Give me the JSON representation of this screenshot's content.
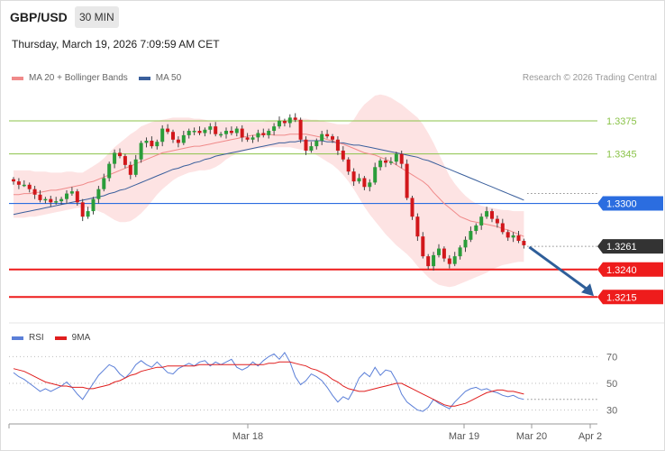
{
  "header": {
    "symbol": "GBP/USD",
    "timeframe": "30 MIN",
    "datetime": "Thursday, March 19, 2026 7:09:59 AM CET"
  },
  "legend": {
    "ma20_label": "MA 20 + Bollinger Bands",
    "ma50_label": "MA 50",
    "credit": "Research © 2026 Trading Central"
  },
  "rsi_legend": {
    "rsi_label": "RSI",
    "ma_label": "9MA"
  },
  "colors": {
    "candle_up": "#2a9d3a",
    "candle_down": "#d2171b",
    "ma20": "#f08a8a",
    "bollinger_fill": "#fde3e3",
    "ma50": "#3a5f9c",
    "resistance": "#8bc34a",
    "pivot": "#2b6de0",
    "support": "#ee1c1c",
    "current": "#333333",
    "arrow": "#2e5e99",
    "rsi": "#5b7fd8",
    "rsi_ma": "#e01e1e"
  },
  "chart_data": [
    {
      "type": "candlestick",
      "title": "",
      "ylim": [
        3198,
        3407
      ],
      "x_labels": [
        "Mar 18",
        "Mar 19",
        "Mar 20",
        "Apr 2"
      ],
      "levels": [
        {
          "value": 1.3375,
          "label": "1.3375",
          "kind": "resistance"
        },
        {
          "value": 1.3345,
          "label": "1.3345",
          "kind": "resistance"
        },
        {
          "value": 1.33,
          "label": "1.3300",
          "kind": "pivot"
        },
        {
          "value": 1.3261,
          "label": "1.3261",
          "kind": "current"
        },
        {
          "value": 1.324,
          "label": "1.3240",
          "kind": "support"
        },
        {
          "value": 1.3215,
          "label": "1.3215",
          "kind": "support"
        }
      ],
      "closes": [
        3320,
        3317,
        3317,
        3313,
        3308,
        3303,
        3304,
        3301,
        3302,
        3304,
        3309,
        3311,
        3301,
        3288,
        3293,
        3304,
        3313,
        3323,
        3336,
        3346,
        3343,
        3335,
        3326,
        3340,
        3355,
        3357,
        3352,
        3356,
        3368,
        3365,
        3358,
        3355,
        3362,
        3366,
        3366,
        3364,
        3367,
        3370,
        3363,
        3363,
        3366,
        3364,
        3368,
        3360,
        3358,
        3360,
        3364,
        3362,
        3366,
        3370,
        3375,
        3373,
        3378,
        3376,
        3358,
        3348,
        3352,
        3357,
        3363,
        3361,
        3358,
        3348,
        3340,
        3329,
        3320,
        3323,
        3315,
        3319,
        3333,
        3339,
        3337,
        3338,
        3345,
        3336,
        3305,
        3288,
        3270,
        3252,
        3243,
        3253,
        3259,
        3250,
        3245,
        3252,
        3260,
        3267,
        3275,
        3280,
        3288,
        3293,
        3286,
        3282,
        3274,
        3269,
        3271,
        3266,
        3262
      ],
      "ma20": [
        3308,
        3308,
        3309,
        3309,
        3310,
        3310,
        3311,
        3312,
        3312,
        3313,
        3314,
        3315,
        3316,
        3317,
        3319,
        3320,
        3322,
        3324,
        3326,
        3328,
        3330,
        3332,
        3334,
        3336,
        3338,
        3340,
        3342,
        3344,
        3346,
        3347,
        3348,
        3349,
        3350,
        3351,
        3352,
        3352,
        3353,
        3354,
        3355,
        3356,
        3357,
        3358,
        3359,
        3360,
        3361,
        3362,
        3362,
        3363,
        3363,
        3362,
        3362,
        3362,
        3363,
        3363,
        3363,
        3363,
        3362,
        3361,
        3360,
        3358,
        3357,
        3355,
        3354,
        3352,
        3350,
        3348,
        3346,
        3345,
        3344,
        3342,
        3340,
        3338,
        3335,
        3332,
        3329,
        3326,
        3323,
        3320,
        3316,
        3310,
        3305,
        3300,
        3296,
        3292,
        3288,
        3286,
        3284,
        3283,
        3282,
        3281,
        3280,
        3279,
        3277,
        3276,
        3274,
        3272,
        3270
      ],
      "ma50": [
        3290,
        3291,
        3292,
        3293,
        3294,
        3295,
        3296,
        3297,
        3298,
        3299,
        3300,
        3301,
        3302,
        3303,
        3304,
        3305,
        3306,
        3307,
        3309,
        3310,
        3312,
        3313,
        3315,
        3317,
        3319,
        3321,
        3323,
        3325,
        3327,
        3329,
        3331,
        3332,
        3334,
        3335,
        3337,
        3338,
        3340,
        3341,
        3343,
        3344,
        3345,
        3346,
        3347,
        3348,
        3349,
        3350,
        3351,
        3352,
        3353,
        3354,
        3355,
        3355,
        3356,
        3356,
        3357,
        3357,
        3357,
        3357,
        3357,
        3356,
        3356,
        3355,
        3355,
        3354,
        3353,
        3353,
        3352,
        3351,
        3350,
        3349,
        3348,
        3347,
        3346,
        3345,
        3344,
        3343,
        3342,
        3340,
        3339,
        3337,
        3335,
        3333,
        3331,
        3329,
        3327,
        3325,
        3323,
        3321,
        3319,
        3317,
        3315,
        3313,
        3311,
        3309,
        3307,
        3305,
        3303
      ],
      "bollinger_upper": [
        3330,
        3330,
        3330,
        3330,
        3329,
        3329,
        3329,
        3328,
        3328,
        3328,
        3329,
        3329,
        3328,
        3328,
        3331,
        3334,
        3337,
        3341,
        3346,
        3351,
        3355,
        3359,
        3363,
        3366,
        3370,
        3372,
        3374,
        3375,
        3376,
        3377,
        3378,
        3378,
        3378,
        3378,
        3377,
        3377,
        3376,
        3375,
        3375,
        3374,
        3374,
        3374,
        3374,
        3374,
        3374,
        3374,
        3374,
        3374,
        3375,
        3375,
        3376,
        3376,
        3377,
        3377,
        3377,
        3377,
        3376,
        3376,
        3375,
        3374,
        3373,
        3372,
        3372,
        3372,
        3376,
        3384,
        3390,
        3394,
        3398,
        3399,
        3398,
        3396,
        3393,
        3390,
        3386,
        3382,
        3378,
        3372,
        3364,
        3355,
        3345,
        3335,
        3325,
        3318,
        3312,
        3307,
        3303,
        3300,
        3298,
        3297,
        3296,
        3295,
        3294,
        3294,
        3293,
        3293,
        3293
      ],
      "bollinger_lower": [
        3287,
        3287,
        3287,
        3288,
        3288,
        3289,
        3290,
        3291,
        3292,
        3293,
        3294,
        3295,
        3296,
        3296,
        3296,
        3295,
        3293,
        3291,
        3288,
        3285,
        3283,
        3283,
        3284,
        3287,
        3291,
        3296,
        3302,
        3308,
        3313,
        3317,
        3321,
        3324,
        3326,
        3328,
        3329,
        3330,
        3330,
        3331,
        3333,
        3336,
        3340,
        3343,
        3345,
        3347,
        3348,
        3349,
        3350,
        3350,
        3351,
        3351,
        3351,
        3351,
        3351,
        3350,
        3349,
        3348,
        3346,
        3344,
        3341,
        3338,
        3335,
        3331,
        3326,
        3320,
        3313,
        3305,
        3297,
        3290,
        3284,
        3278,
        3272,
        3267,
        3262,
        3258,
        3254,
        3249,
        3243,
        3238,
        3233,
        3229,
        3226,
        3225,
        3224,
        3225,
        3227,
        3229,
        3231,
        3233,
        3235,
        3237,
        3240,
        3242,
        3244,
        3245,
        3246,
        3247,
        3247
      ]
    },
    {
      "type": "line",
      "title": "",
      "ylim": [
        23,
        77
      ],
      "yticks": [
        30,
        50,
        70
      ],
      "series": [
        {
          "name": "RSI",
          "values": [
            58,
            55,
            53,
            50,
            47,
            44,
            46,
            44,
            46,
            48,
            51,
            47,
            42,
            38,
            44,
            50,
            56,
            60,
            64,
            62,
            57,
            54,
            58,
            64,
            67,
            64,
            62,
            66,
            62,
            58,
            57,
            61,
            63,
            65,
            63,
            66,
            67,
            63,
            66,
            64,
            66,
            68,
            62,
            60,
            62,
            66,
            63,
            67,
            70,
            72,
            68,
            73,
            66,
            55,
            49,
            52,
            57,
            55,
            52,
            47,
            41,
            36,
            40,
            38,
            45,
            54,
            58,
            55,
            62,
            56,
            60,
            59,
            52,
            42,
            36,
            33,
            30,
            29,
            32,
            38,
            35,
            33,
            31,
            36,
            40,
            44,
            46,
            47,
            45,
            46,
            44,
            43,
            41,
            40,
            41,
            39,
            38
          ]
        },
        {
          "name": "9MA",
          "values": [
            61,
            60,
            59,
            57,
            55,
            53,
            51,
            50,
            49,
            48,
            48,
            47,
            47,
            47,
            46,
            46,
            47,
            48,
            49,
            51,
            52,
            54,
            56,
            57,
            59,
            60,
            61,
            62,
            62,
            63,
            63,
            63,
            63,
            63,
            63,
            64,
            64,
            64,
            64,
            64,
            64,
            64,
            64,
            64,
            64,
            64,
            64,
            64,
            65,
            65,
            66,
            66,
            66,
            65,
            64,
            63,
            61,
            60,
            58,
            56,
            53,
            51,
            48,
            46,
            45,
            44,
            44,
            45,
            46,
            47,
            48,
            49,
            50,
            50,
            48,
            46,
            44,
            42,
            40,
            38,
            36,
            34,
            33,
            33,
            34,
            35,
            37,
            39,
            41,
            43,
            44,
            45,
            45,
            44,
            44,
            43,
            42
          ]
        }
      ]
    }
  ]
}
